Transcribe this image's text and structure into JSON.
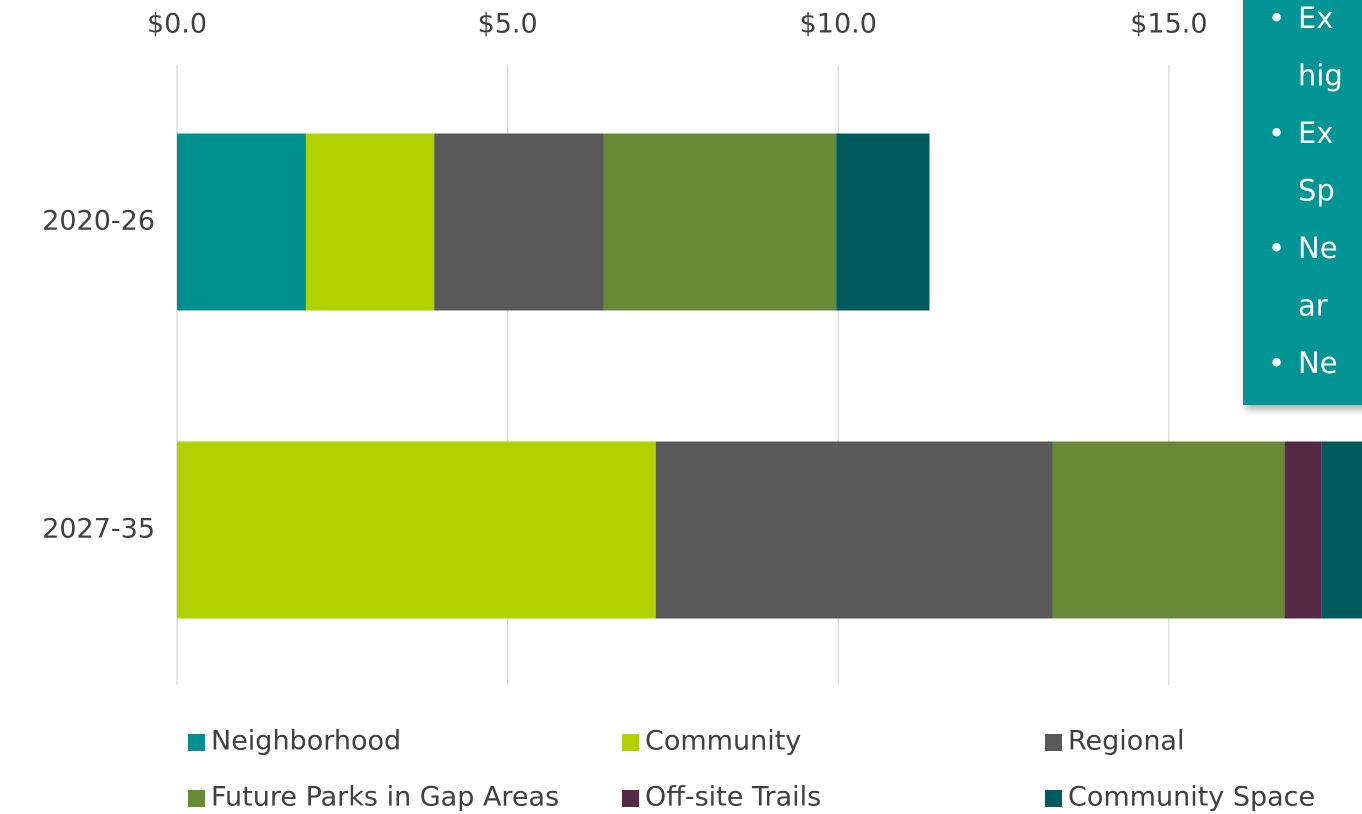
{
  "chart_data": {
    "type": "stacked-bar-horizontal",
    "categories": [
      "2020-26",
      "2027-35"
    ],
    "series": [
      {
        "name": "Neighborhood",
        "color": "#009090",
        "values": [
          1.95,
          0
        ]
      },
      {
        "name": "Community",
        "color": "#b2d200",
        "values": [
          1.94,
          7.24
        ]
      },
      {
        "name": "Regional",
        "color": "#595959",
        "values": [
          2.56,
          6.0
        ]
      },
      {
        "name": "Future Parks in Gap Areas",
        "color": "#668a35",
        "values": [
          3.52,
          3.51
        ]
      },
      {
        "name": "Off-site Trails",
        "color": "#562a44",
        "values": [
          0,
          0.56
        ]
      },
      {
        "name": "Community Space",
        "color": "#005c5c",
        "values": [
          1.41,
          1.0
        ]
      }
    ],
    "xlim": [
      0,
      17.92
    ],
    "xticks": [
      {
        "value": 0,
        "label": "$0.0"
      },
      {
        "value": 5,
        "label": "$5.0"
      },
      {
        "value": 10,
        "label": "$10.0"
      },
      {
        "value": 15,
        "label": "$15.0"
      }
    ],
    "grid": true,
    "legend": "bottom",
    "annotation": {
      "color": "#009494",
      "bullets": [
        [
          "Ex",
          "hig"
        ],
        [
          "Ex",
          "Sp"
        ],
        [
          "Ne",
          "ar"
        ],
        [
          "Ne"
        ]
      ]
    }
  }
}
